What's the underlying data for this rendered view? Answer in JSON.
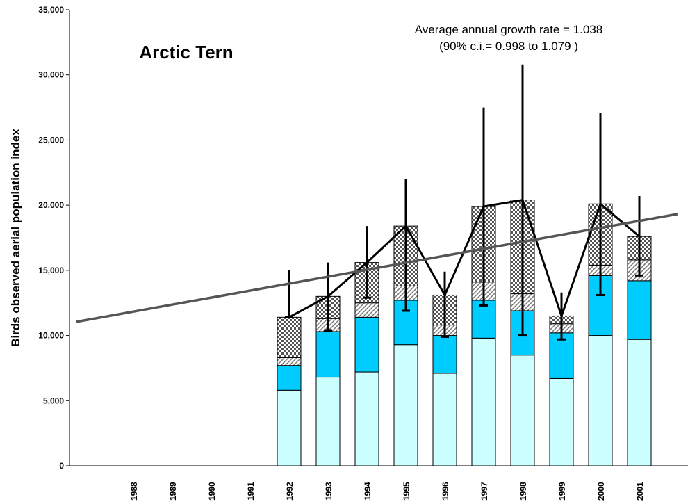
{
  "chart_data": {
    "type": "stacked_bar",
    "title": "Arctic Tern",
    "annotation": [
      "Average annual growth rate = 1.038",
      "(90% c.i.= 0.998 to 1.079 )"
    ],
    "y_label": "Birds observed aerial population index",
    "categories": [
      "1988",
      "1989",
      "1990",
      "1991",
      "1992",
      "1993",
      "1994",
      "1995",
      "1996",
      "1997",
      "1998",
      "1999",
      "2000",
      "2001"
    ],
    "series": [
      {
        "color": "#ccffff",
        "values": [
          null,
          null,
          null,
          null,
          5800,
          6800,
          7200,
          9300,
          7100,
          9800,
          8500,
          6700,
          10000,
          9700
        ]
      },
      {
        "color": "#00ccff",
        "values": [
          null,
          null,
          null,
          null,
          1900,
          3500,
          4200,
          3400,
          2900,
          2900,
          3400,
          3500,
          4600,
          4500
        ]
      },
      {
        "color": "hatch",
        "values": [
          null,
          null,
          null,
          null,
          600,
          1000,
          1100,
          1100,
          800,
          1400,
          1300,
          700,
          800,
          1600
        ]
      },
      {
        "color": "checker",
        "values": [
          null,
          null,
          null,
          null,
          3100,
          1700,
          3100,
          4600,
          2300,
          5800,
          7200,
          600,
          4700,
          1800
        ]
      }
    ],
    "error_low": [
      null,
      null,
      null,
      null,
      11400,
      10400,
      12900,
      11900,
      9900,
      12300,
      10000,
      9700,
      13100,
      14600
    ],
    "error_high": [
      null,
      null,
      null,
      null,
      15000,
      15600,
      18400,
      22000,
      14900,
      27500,
      30800,
      13300,
      27100,
      20700
    ],
    "trend": [
      11050,
      19320
    ],
    "ylim": [
      0,
      35000
    ],
    "yticks": [
      0,
      {
        "value": 5000,
        "label": "5,000"
      },
      {
        "value": 10000,
        "label": "10,000"
      },
      {
        "value": 15000,
        "label": "15,000"
      },
      {
        "value": 20000,
        "label": "20,000"
      },
      {
        "value": 25000,
        "label": "25,000"
      },
      {
        "value": 30000,
        "label": "30,000"
      },
      {
        "value": 35000,
        "label": "35,000"
      }
    ]
  }
}
